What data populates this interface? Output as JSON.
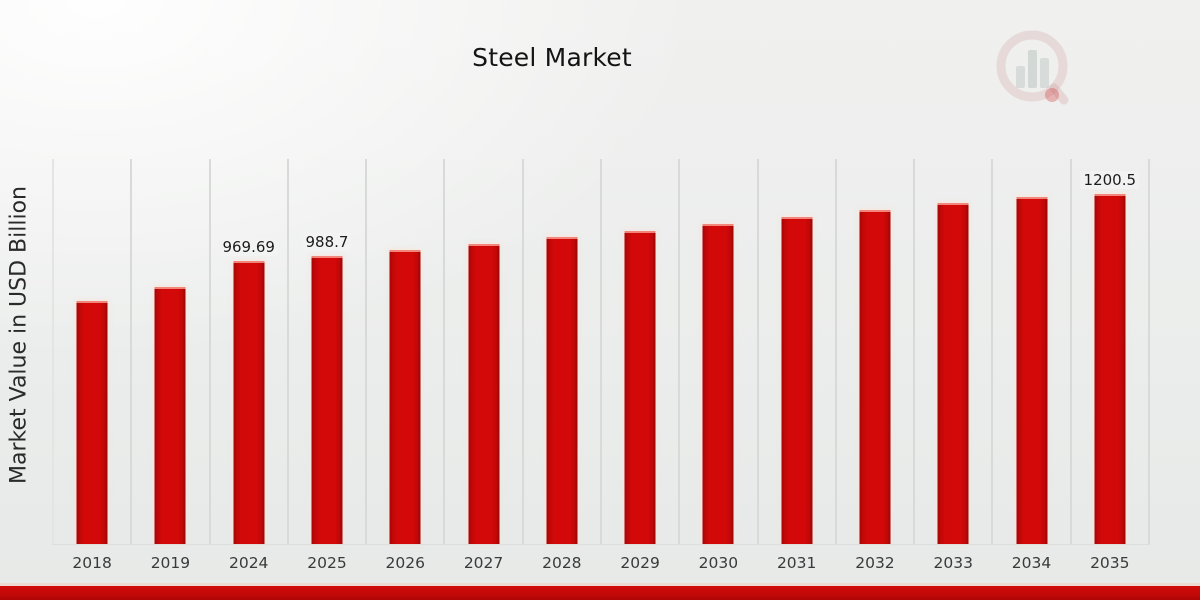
{
  "chart_data": {
    "type": "bar",
    "title": "Steel Market",
    "xlabel": "",
    "ylabel": "Market Value in USD Billion",
    "categories": [
      "2018",
      "2019",
      "2024",
      "2025",
      "2026",
      "2027",
      "2028",
      "2029",
      "2030",
      "2031",
      "2032",
      "2033",
      "2034",
      "2035"
    ],
    "values": [
      833,
      880,
      969.69,
      988.7,
      1008,
      1030,
      1052,
      1075,
      1098,
      1122,
      1146,
      1171,
      1190,
      1200.5
    ],
    "data_labels": [
      null,
      null,
      "969.69",
      "988.7",
      null,
      null,
      null,
      null,
      null,
      null,
      null,
      null,
      null,
      "1200.5"
    ],
    "ylim": [
      0,
      1320
    ],
    "grid": "vertical-column-separators",
    "legend_position": "none",
    "bar_color": "#d30909",
    "bar_color_dark_edge": "#b00707",
    "notes": "y-axis has no tick labels; only three bars carry data labels"
  },
  "branding": {
    "watermark_icon": "magnifier-bar-chart-logo",
    "footer_bar_color": "#c20808",
    "footer_accent_color": "#ecd8d0"
  },
  "colors": {
    "title_text": "#141414",
    "axis_text": "#3a3a3a",
    "gridline": "#d8dada",
    "background": "#ebedec"
  }
}
